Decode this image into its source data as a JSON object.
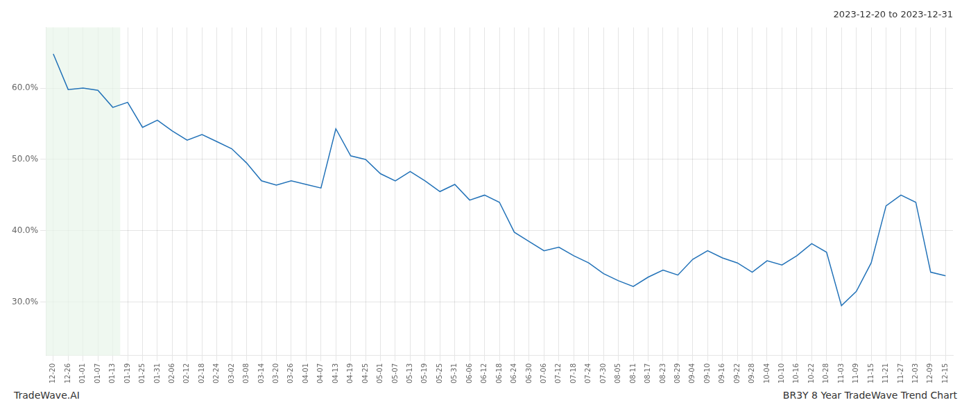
{
  "chart_data": {
    "type": "line",
    "title": "2023-12-20 to 2023-12-31",
    "annotations": [
      "TradeWave.AI",
      "BR3Y 8 Year TradeWave Trend Chart"
    ],
    "categories": [
      "12-20",
      "12-26",
      "01-01",
      "01-07",
      "01-13",
      "01-19",
      "01-25",
      "01-31",
      "02-06",
      "02-12",
      "02-18",
      "02-24",
      "03-02",
      "03-08",
      "03-14",
      "03-20",
      "03-26",
      "04-01",
      "04-07",
      "04-13",
      "04-19",
      "04-25",
      "05-01",
      "05-07",
      "05-13",
      "05-19",
      "05-25",
      "05-31",
      "06-06",
      "06-12",
      "06-18",
      "06-24",
      "06-30",
      "07-06",
      "07-12",
      "07-18",
      "07-24",
      "07-30",
      "08-05",
      "08-11",
      "08-17",
      "08-23",
      "08-29",
      "09-04",
      "09-10",
      "09-16",
      "09-22",
      "09-28",
      "10-04",
      "10-10",
      "10-16",
      "10-22",
      "10-28",
      "11-03",
      "11-09",
      "11-15",
      "11-21",
      "11-27",
      "12-03",
      "12-09",
      "12-15"
    ],
    "values": [
      0.648,
      0.598,
      0.6,
      0.597,
      0.573,
      0.58,
      0.545,
      0.555,
      0.54,
      0.527,
      0.535,
      0.525,
      0.515,
      0.495,
      0.47,
      0.464,
      0.47,
      0.465,
      0.46,
      0.543,
      0.505,
      0.5,
      0.48,
      0.47,
      0.483,
      0.47,
      0.455,
      0.465,
      0.443,
      0.45,
      0.44,
      0.398,
      0.385,
      0.372,
      0.377,
      0.365,
      0.355,
      0.34,
      0.33,
      0.322,
      0.335,
      0.345,
      0.338,
      0.36,
      0.372,
      0.362,
      0.355,
      0.342,
      0.358,
      0.352,
      0.365,
      0.382,
      0.37,
      0.295,
      0.315,
      0.355,
      0.435,
      0.45,
      0.44,
      0.342,
      0.337
    ],
    "color": "#2272b8",
    "highlight": {
      "from": "12-20",
      "to": "01-13",
      "color": "#e8f5e9"
    },
    "ylim": [
      0.225,
      0.685
    ],
    "yticks": [
      {
        "value": 0.3,
        "label": "30.0%"
      },
      {
        "value": 0.4,
        "label": "40.0%"
      },
      {
        "value": 0.5,
        "label": "50.0%"
      },
      {
        "value": 0.6,
        "label": "60.0%"
      }
    ],
    "grid": true
  }
}
